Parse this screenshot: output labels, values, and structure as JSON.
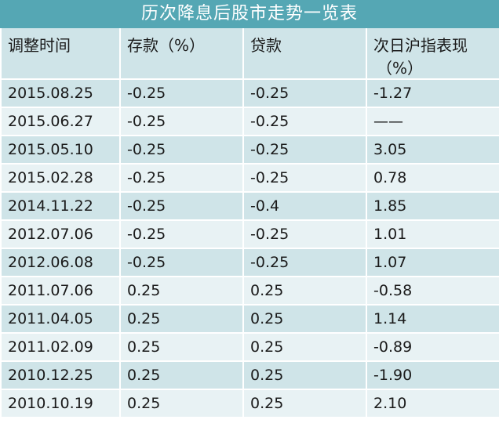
{
  "title": "历次降息后股市走势一览表",
  "headers": {
    "date": "调整时间",
    "deposit": "存款（%）",
    "loan": "贷款",
    "market_line1": "次日沪指表现",
    "market_line2": "（%）"
  },
  "rows": [
    {
      "date": "2015.08.25",
      "deposit": "-0.25",
      "loan": "-0.25",
      "market": "-1.27"
    },
    {
      "date": "2015.06.27",
      "deposit": "-0.25",
      "loan": "-0.25",
      "market": "——"
    },
    {
      "date": "2015.05.10",
      "deposit": "-0.25",
      "loan": "-0.25",
      "market": "3.05"
    },
    {
      "date": "2015.02.28",
      "deposit": "-0.25",
      "loan": "-0.25",
      "market": "0.78"
    },
    {
      "date": "2014.11.22",
      "deposit": "-0.25",
      "loan": "-0.4",
      "market": "1.85"
    },
    {
      "date": "2012.07.06",
      "deposit": "-0.25",
      "loan": "-0.25",
      "market": "1.01"
    },
    {
      "date": "2012.06.08",
      "deposit": "-0.25",
      "loan": "-0.25",
      "market": "1.07"
    },
    {
      "date": "2011.07.06",
      "deposit": "0.25",
      "loan": "0.25",
      "market": "-0.58"
    },
    {
      "date": "2011.04.05",
      "deposit": "0.25",
      "loan": "0.25",
      "market": "1.14"
    },
    {
      "date": "2011.02.09",
      "deposit": "0.25",
      "loan": "0.25",
      "market": "-0.89"
    },
    {
      "date": "2010.12.25",
      "deposit": "0.25",
      "loan": "0.25",
      "market": "-1.90"
    },
    {
      "date": "2010.10.19",
      "deposit": "0.25",
      "loan": "0.25",
      "market": "2.10"
    }
  ],
  "colors": {
    "title_bg": "#55a7b4",
    "row_dark": "#cfe4e8",
    "row_light": "#e8f2f4"
  }
}
